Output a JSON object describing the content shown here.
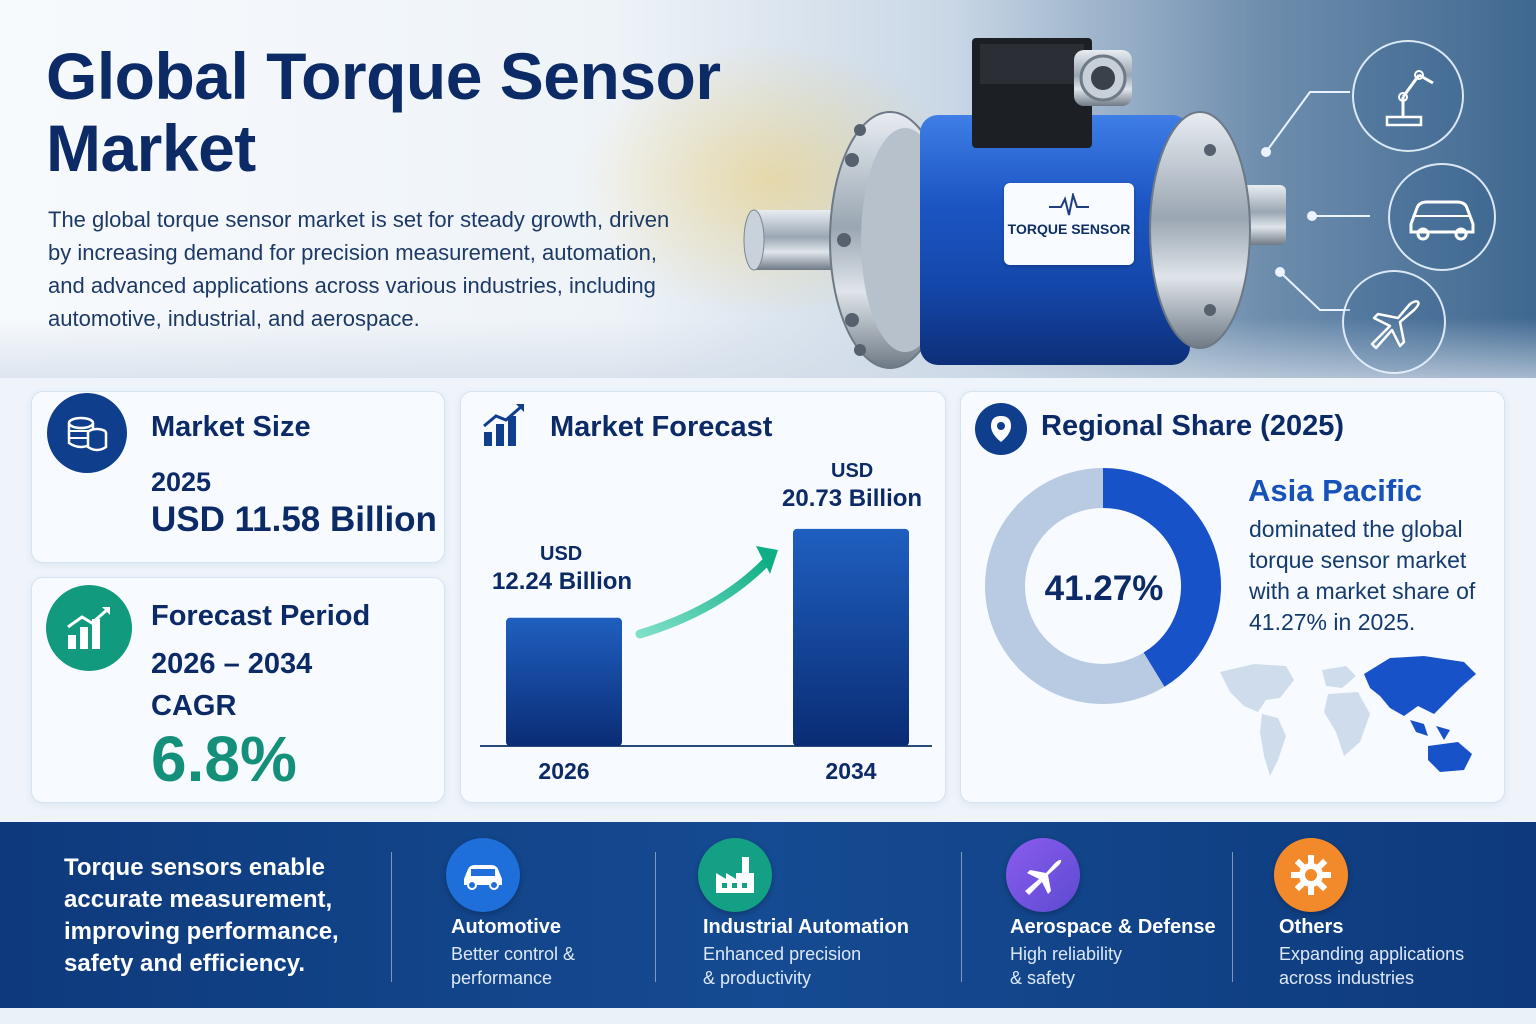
{
  "hero": {
    "title_line1": "Global Torque Sensor",
    "title_line2": "Market",
    "description": "The global torque sensor market is set for steady growth, driven by increasing demand for precision measurement, automation, and advanced applications across various industries, including automotive, industrial, and aerospace.",
    "sensor_label": "TORQUE SENSOR",
    "app_icons": [
      "robot-arm-icon",
      "car-icon",
      "airplane-icon"
    ]
  },
  "market_size": {
    "title": "Market Size",
    "year": "2025",
    "value": "USD 11.58 Billion"
  },
  "forecast_period": {
    "title": "Forecast Period",
    "range": "2026 – 2034",
    "cagr_label": "CAGR",
    "cagr_value": "6.8%"
  },
  "market_forecast": {
    "title": "Market Forecast",
    "bar1_currency": "USD",
    "bar1_value": "12.24 Billion",
    "bar2_currency": "USD",
    "bar2_value": "20.73 Billion"
  },
  "chart_data": {
    "type": "bar",
    "categories": [
      "2026",
      "2034"
    ],
    "values": [
      12.24,
      20.73
    ],
    "title": "Market Forecast",
    "xlabel": "",
    "ylabel": "",
    "ylim": [
      0,
      21
    ],
    "grid": false
  },
  "regional_share": {
    "title": "Regional Share (2025)",
    "donut_value": "41.27%",
    "share_fraction": 0.4127,
    "region": "Asia Pacific",
    "line1": "dominated the global",
    "line2": "torque sensor market",
    "line3": "with a market share of",
    "line4": "41.27% in 2025."
  },
  "band": {
    "tagline_line1": "Torque sensors enable",
    "tagline_line2": "accurate measurement,",
    "tagline_line3": "improving performance,",
    "tagline_line4": "safety and efficiency.",
    "items": [
      {
        "title": "Automotive",
        "desc1": "Better control &",
        "desc2": "performance",
        "icon": "car-icon",
        "color": "#1e6fd9"
      },
      {
        "title": "Industrial Automation",
        "desc1": "Enhanced precision",
        "desc2": "& productivity",
        "icon": "factory-icon",
        "color": "#14a084"
      },
      {
        "title": "Aerospace & Defense",
        "desc1": "High reliability",
        "desc2": "& safety",
        "icon": "airplane-icon",
        "color": "#7a57d8"
      },
      {
        "title": "Others",
        "desc1": "Expanding applications",
        "desc2": "across industries",
        "icon": "gear-icon",
        "color": "#f28a2b"
      }
    ]
  },
  "colors": {
    "navy": "#0c2a66",
    "blue": "#1752b8",
    "green": "#14907a",
    "band": "#0e3a7c"
  }
}
